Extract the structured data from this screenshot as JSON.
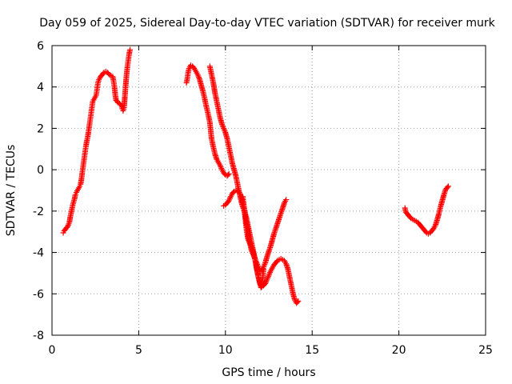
{
  "chart_data": {
    "type": "scatter",
    "title": "Day 059 of 2025, Sidereal Day-to-day VTEC variation (SDTVAR) for receiver murk",
    "xlabel": "GPS time / hours",
    "ylabel": "SDTVAR / TECUs",
    "xlim": [
      0,
      25
    ],
    "ylim": [
      -8,
      6
    ],
    "x_ticks": [
      0,
      5,
      10,
      15,
      20,
      25
    ],
    "y_ticks": [
      -8,
      -6,
      -4,
      -2,
      0,
      2,
      4,
      6
    ],
    "grid": true,
    "marker": "plus",
    "color": "#ff0000",
    "series": [
      {
        "points": [
          [
            0.65,
            -3.05
          ],
          [
            0.7,
            -2.95
          ],
          [
            0.75,
            -2.9
          ],
          [
            0.8,
            -2.85
          ],
          [
            0.9,
            -2.75
          ],
          [
            1.0,
            -2.55
          ],
          [
            1.05,
            -2.3
          ],
          [
            1.1,
            -2.1
          ],
          [
            1.15,
            -1.9
          ],
          [
            1.2,
            -1.7
          ],
          [
            1.25,
            -1.55
          ],
          [
            1.3,
            -1.4
          ],
          [
            1.35,
            -1.2
          ],
          [
            1.4,
            -1.1
          ],
          [
            1.5,
            -0.95
          ],
          [
            1.6,
            -0.8
          ],
          [
            1.65,
            -0.7
          ],
          [
            1.7,
            -0.45
          ],
          [
            1.75,
            -0.1
          ],
          [
            1.8,
            0.2
          ],
          [
            1.85,
            0.5
          ],
          [
            1.9,
            0.8
          ],
          [
            1.95,
            1.1
          ],
          [
            2.0,
            1.35
          ],
          [
            2.05,
            1.55
          ],
          [
            2.1,
            1.8
          ],
          [
            2.15,
            2.1
          ],
          [
            2.2,
            2.4
          ],
          [
            2.25,
            2.7
          ],
          [
            2.3,
            3.0
          ],
          [
            2.35,
            3.3
          ],
          [
            2.45,
            3.45
          ],
          [
            2.55,
            3.6
          ],
          [
            2.6,
            3.9
          ],
          [
            2.65,
            4.2
          ],
          [
            2.7,
            4.35
          ],
          [
            2.8,
            4.5
          ],
          [
            2.9,
            4.6
          ],
          [
            3.0,
            4.7
          ],
          [
            3.1,
            4.75
          ],
          [
            3.2,
            4.7
          ],
          [
            3.3,
            4.6
          ],
          [
            3.4,
            4.55
          ],
          [
            3.5,
            4.5
          ],
          [
            3.55,
            4.3
          ],
          [
            3.6,
            4.0
          ],
          [
            3.65,
            3.6
          ],
          [
            3.7,
            3.35
          ],
          [
            3.8,
            3.25
          ],
          [
            3.9,
            3.2
          ],
          [
            4.0,
            3.1
          ],
          [
            4.05,
            2.95
          ],
          [
            4.1,
            2.85
          ],
          [
            4.15,
            3.0
          ],
          [
            4.2,
            3.5
          ],
          [
            4.25,
            4.1
          ],
          [
            4.3,
            4.6
          ],
          [
            4.35,
            5.0
          ],
          [
            4.4,
            5.3
          ],
          [
            4.45,
            5.6
          ],
          [
            4.5,
            5.8
          ]
        ]
      },
      {
        "points": [
          [
            7.75,
            4.2
          ],
          [
            7.8,
            4.4
          ],
          [
            7.85,
            4.7
          ],
          [
            7.9,
            4.9
          ],
          [
            8.0,
            5.05
          ],
          [
            8.1,
            5.0
          ],
          [
            8.2,
            4.9
          ],
          [
            8.3,
            4.75
          ],
          [
            8.4,
            4.6
          ],
          [
            8.5,
            4.4
          ],
          [
            8.6,
            4.1
          ],
          [
            8.7,
            3.8
          ],
          [
            8.8,
            3.45
          ],
          [
            8.9,
            3.05
          ],
          [
            9.0,
            2.7
          ],
          [
            9.1,
            2.3
          ],
          [
            9.15,
            1.9
          ],
          [
            9.2,
            1.5
          ],
          [
            9.3,
            1.1
          ],
          [
            9.4,
            0.75
          ],
          [
            9.5,
            0.5
          ],
          [
            9.6,
            0.35
          ],
          [
            9.7,
            0.2
          ],
          [
            9.8,
            0.0
          ],
          [
            9.9,
            -0.15
          ],
          [
            10.0,
            -0.25
          ],
          [
            10.1,
            -0.3
          ],
          [
            10.2,
            -0.2
          ]
        ]
      },
      {
        "points": [
          [
            9.1,
            5.0
          ],
          [
            9.15,
            4.8
          ],
          [
            9.2,
            4.6
          ],
          [
            9.25,
            4.4
          ],
          [
            9.3,
            4.2
          ],
          [
            9.35,
            3.95
          ],
          [
            9.4,
            3.7
          ],
          [
            9.5,
            3.3
          ],
          [
            9.6,
            2.9
          ],
          [
            9.7,
            2.5
          ],
          [
            9.8,
            2.2
          ],
          [
            9.9,
            2.0
          ],
          [
            10.0,
            1.8
          ],
          [
            10.1,
            1.5
          ],
          [
            10.2,
            1.1
          ],
          [
            10.3,
            0.7
          ],
          [
            10.4,
            0.3
          ],
          [
            10.5,
            0.0
          ],
          [
            10.6,
            -0.3
          ],
          [
            10.7,
            -0.7
          ],
          [
            10.8,
            -1.1
          ],
          [
            10.9,
            -1.5
          ],
          [
            11.0,
            -1.8
          ],
          [
            11.1,
            -2.0
          ],
          [
            11.2,
            -2.3
          ],
          [
            11.3,
            -2.7
          ],
          [
            11.4,
            -3.1
          ],
          [
            11.5,
            -3.5
          ],
          [
            11.6,
            -3.9
          ],
          [
            11.7,
            -4.3
          ],
          [
            11.8,
            -4.8
          ],
          [
            11.9,
            -5.2
          ],
          [
            12.0,
            -5.5
          ],
          [
            12.05,
            -5.7
          ],
          [
            12.1,
            -5.6
          ],
          [
            12.15,
            -5.2
          ],
          [
            12.2,
            -4.8
          ]
        ]
      },
      {
        "points": [
          [
            9.9,
            -1.75
          ],
          [
            10.0,
            -1.7
          ],
          [
            10.1,
            -1.6
          ],
          [
            10.2,
            -1.5
          ],
          [
            10.3,
            -1.3
          ],
          [
            10.4,
            -1.15
          ],
          [
            10.5,
            -1.05
          ],
          [
            10.6,
            -1.0
          ],
          [
            10.7,
            -1.0
          ],
          [
            10.8,
            -1.1
          ],
          [
            10.9,
            -1.3
          ],
          [
            11.0,
            -1.6
          ],
          [
            11.1,
            -2.0
          ],
          [
            11.2,
            -2.5
          ],
          [
            11.3,
            -3.0
          ],
          [
            11.4,
            -3.5
          ],
          [
            11.5,
            -3.9
          ],
          [
            11.6,
            -4.1
          ],
          [
            11.7,
            -4.3
          ],
          [
            11.8,
            -4.5
          ],
          [
            11.9,
            -4.7
          ],
          [
            12.0,
            -4.9
          ],
          [
            12.1,
            -4.85
          ],
          [
            12.2,
            -4.7
          ],
          [
            12.3,
            -4.5
          ],
          [
            12.4,
            -4.2
          ],
          [
            12.5,
            -3.95
          ],
          [
            12.6,
            -3.7
          ],
          [
            12.7,
            -3.4
          ],
          [
            12.8,
            -3.1
          ],
          [
            12.9,
            -2.85
          ],
          [
            13.0,
            -2.6
          ],
          [
            13.1,
            -2.35
          ],
          [
            13.2,
            -2.1
          ],
          [
            13.3,
            -1.85
          ],
          [
            13.4,
            -1.6
          ],
          [
            13.5,
            -1.45
          ]
        ]
      },
      {
        "points": [
          [
            11.0,
            -1.3
          ],
          [
            11.05,
            -1.6
          ],
          [
            11.1,
            -2.0
          ],
          [
            11.15,
            -2.4
          ],
          [
            11.2,
            -2.8
          ],
          [
            11.25,
            -3.1
          ],
          [
            11.3,
            -3.35
          ],
          [
            11.4,
            -3.55
          ],
          [
            11.5,
            -3.75
          ],
          [
            11.6,
            -4.0
          ],
          [
            11.7,
            -4.3
          ],
          [
            11.8,
            -4.7
          ],
          [
            11.9,
            -5.2
          ],
          [
            12.0,
            -5.55
          ],
          [
            12.1,
            -5.65
          ],
          [
            12.2,
            -5.6
          ],
          [
            12.3,
            -5.5
          ],
          [
            12.4,
            -5.3
          ],
          [
            12.5,
            -5.1
          ],
          [
            12.6,
            -4.9
          ],
          [
            12.7,
            -4.75
          ],
          [
            12.8,
            -4.6
          ],
          [
            12.9,
            -4.5
          ],
          [
            13.0,
            -4.4
          ],
          [
            13.1,
            -4.35
          ],
          [
            13.2,
            -4.3
          ],
          [
            13.3,
            -4.35
          ],
          [
            13.4,
            -4.4
          ],
          [
            13.5,
            -4.55
          ],
          [
            13.6,
            -4.8
          ],
          [
            13.7,
            -5.2
          ],
          [
            13.8,
            -5.6
          ],
          [
            13.9,
            -6.0
          ],
          [
            14.0,
            -6.3
          ],
          [
            14.1,
            -6.45
          ],
          [
            14.2,
            -6.35
          ]
        ]
      },
      {
        "points": [
          [
            20.35,
            -1.85
          ],
          [
            20.4,
            -2.05
          ],
          [
            20.5,
            -2.15
          ],
          [
            20.6,
            -2.25
          ],
          [
            20.7,
            -2.35
          ],
          [
            20.8,
            -2.4
          ],
          [
            20.9,
            -2.45
          ],
          [
            21.0,
            -2.5
          ],
          [
            21.1,
            -2.55
          ],
          [
            21.2,
            -2.65
          ],
          [
            21.3,
            -2.75
          ],
          [
            21.4,
            -2.85
          ],
          [
            21.5,
            -2.95
          ],
          [
            21.6,
            -3.05
          ],
          [
            21.7,
            -3.1
          ],
          [
            21.8,
            -3.05
          ],
          [
            21.9,
            -2.95
          ],
          [
            22.0,
            -2.85
          ],
          [
            22.1,
            -2.7
          ],
          [
            22.2,
            -2.45
          ],
          [
            22.3,
            -2.15
          ],
          [
            22.4,
            -1.8
          ],
          [
            22.5,
            -1.5
          ],
          [
            22.6,
            -1.2
          ],
          [
            22.7,
            -0.95
          ],
          [
            22.8,
            -0.85
          ],
          [
            22.85,
            -0.8
          ]
        ]
      }
    ]
  }
}
